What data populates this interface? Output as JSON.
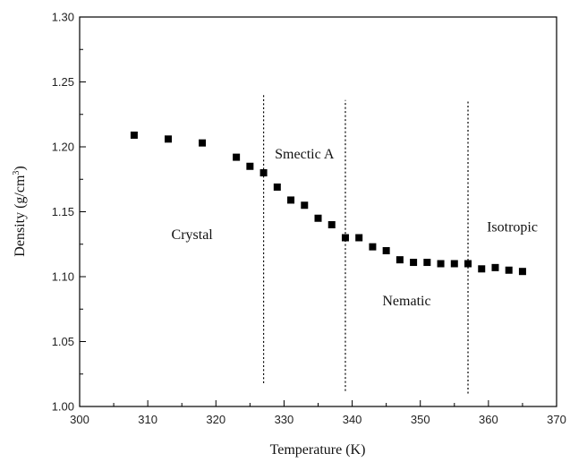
{
  "chart_data": {
    "type": "scatter",
    "xlabel": "Temperature (K)",
    "ylabel_main": "Density (g/cm",
    "ylabel_sup": "3",
    "ylabel_close": ")",
    "xlim": [
      300,
      370
    ],
    "ylim": [
      1.0,
      1.3
    ],
    "xticks": [
      300,
      310,
      320,
      330,
      340,
      350,
      360,
      370
    ],
    "yticks": [
      "1.00",
      "1.05",
      "1.10",
      "1.15",
      "1.20",
      "1.25",
      "1.30"
    ],
    "grid": false,
    "marker": "square",
    "marker_color": "#000000",
    "points": [
      {
        "x": 308,
        "y": 1.209
      },
      {
        "x": 313,
        "y": 1.206
      },
      {
        "x": 318,
        "y": 1.203
      },
      {
        "x": 323,
        "y": 1.192
      },
      {
        "x": 325,
        "y": 1.185
      },
      {
        "x": 327,
        "y": 1.18
      },
      {
        "x": 329,
        "y": 1.169
      },
      {
        "x": 331,
        "y": 1.159
      },
      {
        "x": 333,
        "y": 1.155
      },
      {
        "x": 335,
        "y": 1.145
      },
      {
        "x": 337,
        "y": 1.14
      },
      {
        "x": 339,
        "y": 1.13
      },
      {
        "x": 341,
        "y": 1.13
      },
      {
        "x": 343,
        "y": 1.123
      },
      {
        "x": 345,
        "y": 1.12
      },
      {
        "x": 347,
        "y": 1.113
      },
      {
        "x": 349,
        "y": 1.111
      },
      {
        "x": 351,
        "y": 1.111
      },
      {
        "x": 353,
        "y": 1.11
      },
      {
        "x": 355,
        "y": 1.11
      },
      {
        "x": 357,
        "y": 1.11
      },
      {
        "x": 359,
        "y": 1.106
      },
      {
        "x": 361,
        "y": 1.107
      },
      {
        "x": 363,
        "y": 1.105
      },
      {
        "x": 365,
        "y": 1.104
      }
    ],
    "phase_boundaries": [
      {
        "x": 327,
        "y_from": 1.018,
        "y_to": 1.24
      },
      {
        "x": 339,
        "y_from": 1.012,
        "y_to": 1.236
      },
      {
        "x": 357,
        "y_from": 1.01,
        "y_to": 1.236
      }
    ],
    "region_labels": [
      {
        "text": "Crystal",
        "x": 316.5,
        "y": 1.129
      },
      {
        "text": "Smectic A",
        "x": 333,
        "y": 1.191
      },
      {
        "text": "Nematic",
        "x": 348,
        "y": 1.078
      },
      {
        "text": "Isotropic",
        "x": 363.5,
        "y": 1.135
      }
    ]
  }
}
